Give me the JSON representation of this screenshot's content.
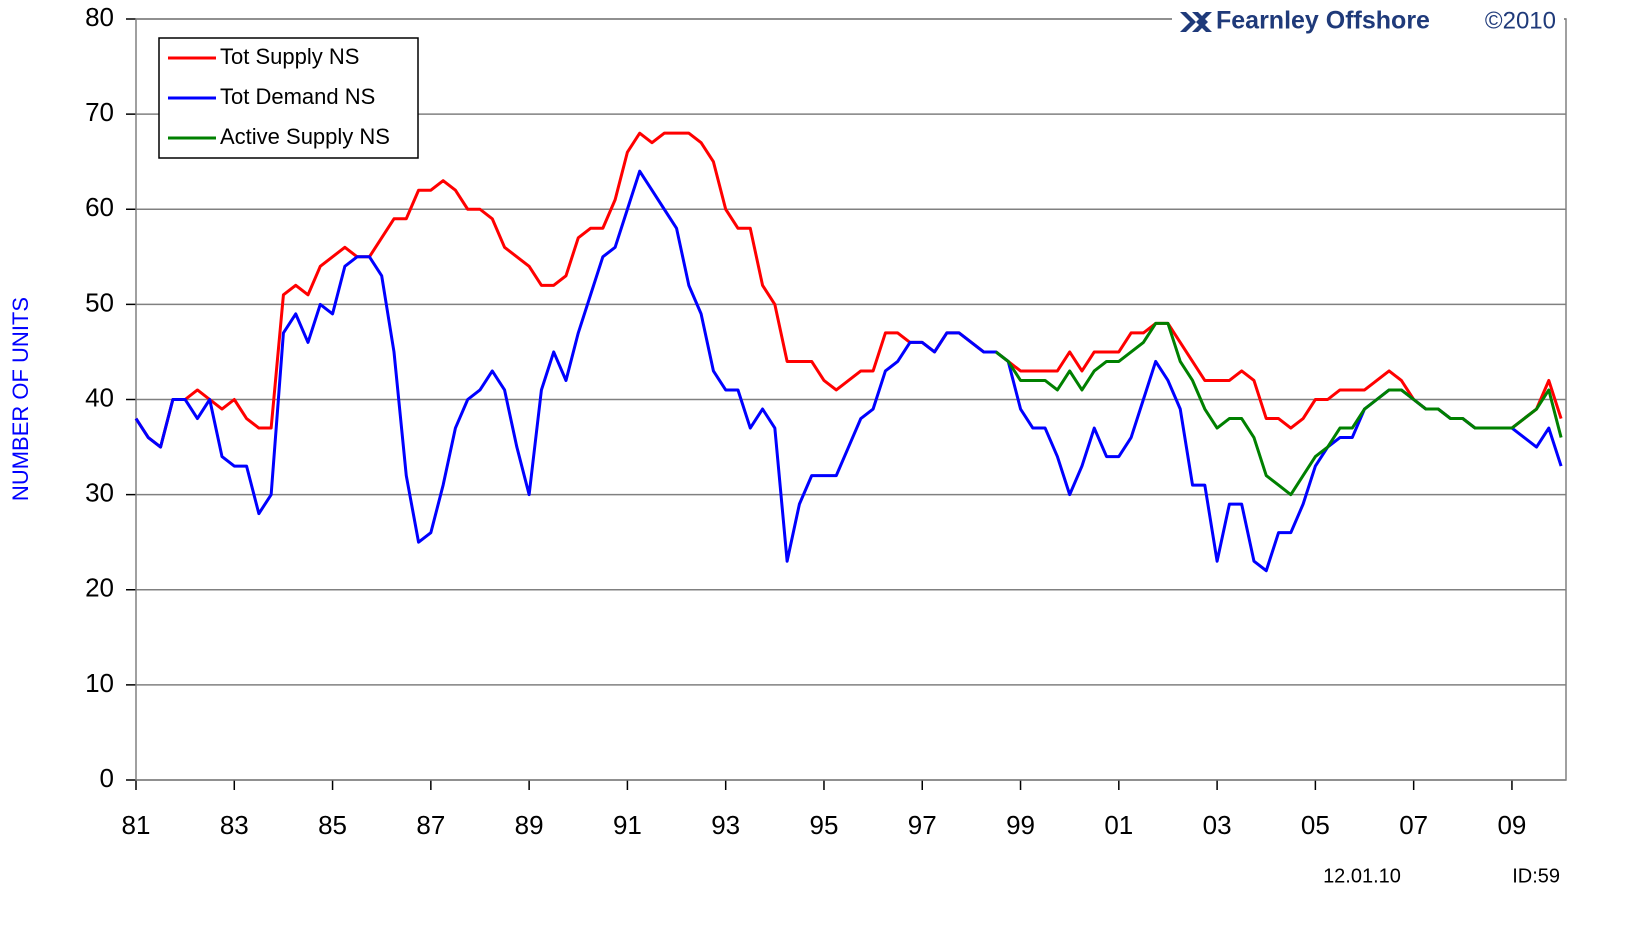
{
  "chart_data": {
    "type": "line",
    "brand": "Fearnley Offshore",
    "copyright": "©2010",
    "y_label": "NUMBER OF UNITS",
    "date": "12.01.10",
    "id": "ID:59",
    "x": [
      1981,
      1981.25,
      1981.5,
      1981.75,
      1982,
      1982.25,
      1982.5,
      1982.75,
      1983,
      1983.25,
      1983.5,
      1983.75,
      1984,
      1984.25,
      1984.5,
      1984.75,
      1985,
      1985.25,
      1985.5,
      1985.75,
      1986,
      1986.25,
      1986.5,
      1986.75,
      1987,
      1987.25,
      1987.5,
      1987.75,
      1988,
      1988.25,
      1988.5,
      1988.75,
      1989,
      1989.25,
      1989.5,
      1989.75,
      1990,
      1990.25,
      1990.5,
      1990.75,
      1991,
      1991.25,
      1991.5,
      1991.75,
      1992,
      1992.25,
      1992.5,
      1992.75,
      1993,
      1993.25,
      1993.5,
      1993.75,
      1994,
      1994.25,
      1994.5,
      1994.75,
      1995,
      1995.25,
      1995.5,
      1995.75,
      1996,
      1996.25,
      1996.5,
      1996.75,
      1997,
      1997.25,
      1997.5,
      1997.75,
      1998,
      1998.25,
      1998.5,
      1998.75,
      1999,
      1999.25,
      1999.5,
      1999.75,
      2000,
      2000.25,
      2000.5,
      2000.75,
      2001,
      2001.25,
      2001.5,
      2001.75,
      2002,
      2002.25,
      2002.5,
      2002.75,
      2003,
      2003.25,
      2003.5,
      2003.75,
      2004,
      2004.25,
      2004.5,
      2004.75,
      2005,
      2005.25,
      2005.5,
      2005.75,
      2006,
      2006.25,
      2006.5,
      2006.75,
      2007,
      2007.25,
      2007.5,
      2007.75,
      2008,
      2008.25,
      2008.5,
      2008.75,
      2009,
      2009.25,
      2009.5,
      2009.75,
      2010
    ],
    "series": [
      {
        "name": "Tot Supply NS",
        "color": "#ff0000",
        "values": [
          38,
          36,
          35,
          40,
          40,
          41,
          40,
          39,
          40,
          38,
          37,
          37,
          51,
          52,
          51,
          54,
          55,
          56,
          55,
          55,
          57,
          59,
          59,
          62,
          62,
          63,
          62,
          60,
          60,
          59,
          56,
          55,
          54,
          52,
          52,
          53,
          57,
          58,
          58,
          61,
          66,
          68,
          67,
          68,
          68,
          68,
          67,
          65,
          60,
          58,
          58,
          52,
          50,
          44,
          44,
          44,
          42,
          41,
          42,
          43,
          43,
          47,
          47,
          46,
          46,
          45,
          47,
          47,
          46,
          45,
          45,
          44,
          43,
          43,
          43,
          43,
          45,
          43,
          45,
          45,
          45,
          47,
          47,
          48,
          48,
          46,
          44,
          42,
          42,
          42,
          43,
          42,
          38,
          38,
          37,
          38,
          40,
          40,
          41,
          41,
          41,
          42,
          43,
          42,
          40,
          39,
          39,
          38,
          38,
          37,
          37,
          37,
          37,
          38,
          39,
          42,
          38
        ]
      },
      {
        "name": "Tot Demand NS",
        "color": "#0000ff",
        "values": [
          38,
          36,
          35,
          40,
          40,
          38,
          40,
          34,
          33,
          33,
          28,
          30,
          47,
          49,
          46,
          50,
          49,
          54,
          55,
          55,
          53,
          45,
          32,
          25,
          26,
          31,
          37,
          40,
          41,
          43,
          41,
          35,
          30,
          41,
          45,
          42,
          47,
          51,
          55,
          56,
          60,
          64,
          62,
          60,
          58,
          52,
          49,
          43,
          41,
          41,
          37,
          39,
          37,
          23,
          29,
          32,
          32,
          32,
          35,
          38,
          39,
          43,
          44,
          46,
          46,
          45,
          47,
          47,
          46,
          45,
          45,
          44,
          39,
          37,
          37,
          34,
          30,
          33,
          37,
          34,
          34,
          36,
          40,
          44,
          42,
          39,
          31,
          31,
          23,
          29,
          29,
          23,
          22,
          26,
          26,
          29,
          33,
          35,
          36,
          36,
          39,
          40,
          41,
          41,
          40,
          39,
          39,
          38,
          38,
          37,
          37,
          37,
          37,
          36,
          35,
          37,
          33
        ]
      },
      {
        "name": "Active Supply NS",
        "color": "#008000",
        "values": [
          null,
          null,
          null,
          null,
          null,
          null,
          null,
          null,
          null,
          null,
          null,
          null,
          null,
          null,
          null,
          null,
          null,
          null,
          null,
          null,
          null,
          null,
          null,
          null,
          null,
          null,
          null,
          null,
          null,
          null,
          null,
          null,
          null,
          null,
          null,
          null,
          null,
          null,
          null,
          null,
          null,
          null,
          null,
          null,
          null,
          null,
          null,
          null,
          null,
          null,
          null,
          null,
          null,
          null,
          null,
          null,
          null,
          null,
          null,
          null,
          null,
          null,
          null,
          null,
          null,
          null,
          null,
          null,
          null,
          null,
          45,
          44,
          42,
          42,
          42,
          41,
          43,
          41,
          43,
          44,
          44,
          45,
          46,
          48,
          48,
          44,
          42,
          39,
          37,
          38,
          38,
          36,
          32,
          31,
          30,
          32,
          34,
          35,
          37,
          37,
          39,
          40,
          41,
          41,
          40,
          39,
          39,
          38,
          38,
          37,
          37,
          37,
          37,
          38,
          39,
          41,
          36
        ]
      }
    ],
    "xlim": [
      1981,
      2010.1
    ],
    "xticks": [
      {
        "value": 1981,
        "label": "81"
      },
      {
        "value": 1983,
        "label": "83"
      },
      {
        "value": 1985,
        "label": "85"
      },
      {
        "value": 1987,
        "label": "87"
      },
      {
        "value": 1989,
        "label": "89"
      },
      {
        "value": 1991,
        "label": "91"
      },
      {
        "value": 1993,
        "label": "93"
      },
      {
        "value": 1995,
        "label": "95"
      },
      {
        "value": 1997,
        "label": "97"
      },
      {
        "value": 1999,
        "label": "99"
      },
      {
        "value": 2001,
        "label": "01"
      },
      {
        "value": 2003,
        "label": "03"
      },
      {
        "value": 2005,
        "label": "05"
      },
      {
        "value": 2007,
        "label": "07"
      },
      {
        "value": 2009,
        "label": "09"
      }
    ],
    "ylim": [
      0,
      80
    ],
    "yticks": [
      0,
      10,
      20,
      30,
      40,
      50,
      60,
      70,
      80
    ],
    "grid": true,
    "legend": "top-left"
  }
}
